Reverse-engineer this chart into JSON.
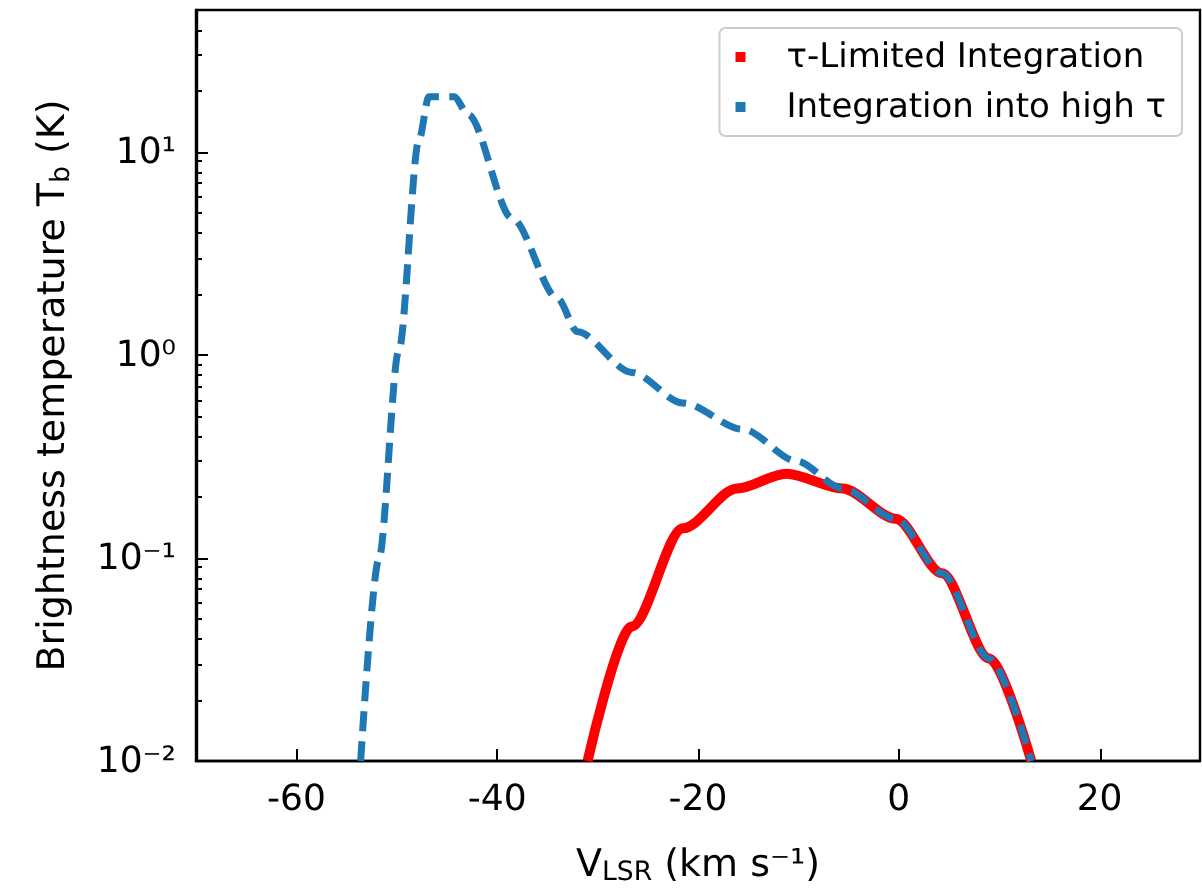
{
  "chart_data": {
    "type": "line",
    "xlabel": "V$_{LSR}$ (km s⁻¹)",
    "ylabel": "Brightness temperature T$_{b}$ (K)",
    "log": "y",
    "xlim": [
      -70,
      30
    ],
    "ylim": [
      0.01,
      50
    ],
    "xticks": [
      -60,
      -40,
      -20,
      0,
      20
    ],
    "yticks": [
      {
        "value": 0.01,
        "label": "10⁻²"
      },
      {
        "value": 0.1,
        "label": "10⁻¹"
      },
      {
        "value": 1,
        "label": "10⁰"
      },
      {
        "value": 10,
        "label": "10¹"
      }
    ],
    "legend": "top right",
    "marker": "none",
    "series": [
      {
        "name": "τ-Limited Integration",
        "color": "#ff0000",
        "line_style": "solid",
        "x": [
          -31,
          -26.6,
          -21.5,
          -16.1,
          -11.2,
          -5.6,
          -0.3,
          4.3,
          9,
          13.2
        ],
        "values": [
          0.01,
          0.046,
          0.14,
          0.22,
          0.26,
          0.22,
          0.156,
          0.084,
          0.032,
          0.01
        ]
      },
      {
        "name": "Integration into high τ",
        "color": "#1f77b4",
        "line_style": "dashed",
        "x": [
          -53.6,
          -51.8,
          -49.8,
          -47.8,
          -46.8,
          -44.3,
          -42.9,
          -38.5,
          -34,
          -32,
          -26.6,
          -21.5,
          -15.5,
          -10.2,
          -5.6,
          -0.3,
          4.3,
          9,
          13.2
        ],
        "values": [
          0.01,
          0.098,
          1.05,
          11.4,
          18.7,
          18.7,
          15.3,
          4.7,
          1.9,
          1.3,
          0.82,
          0.58,
          0.43,
          0.3,
          0.22,
          0.156,
          0.084,
          0.032,
          0.01
        ]
      }
    ]
  }
}
